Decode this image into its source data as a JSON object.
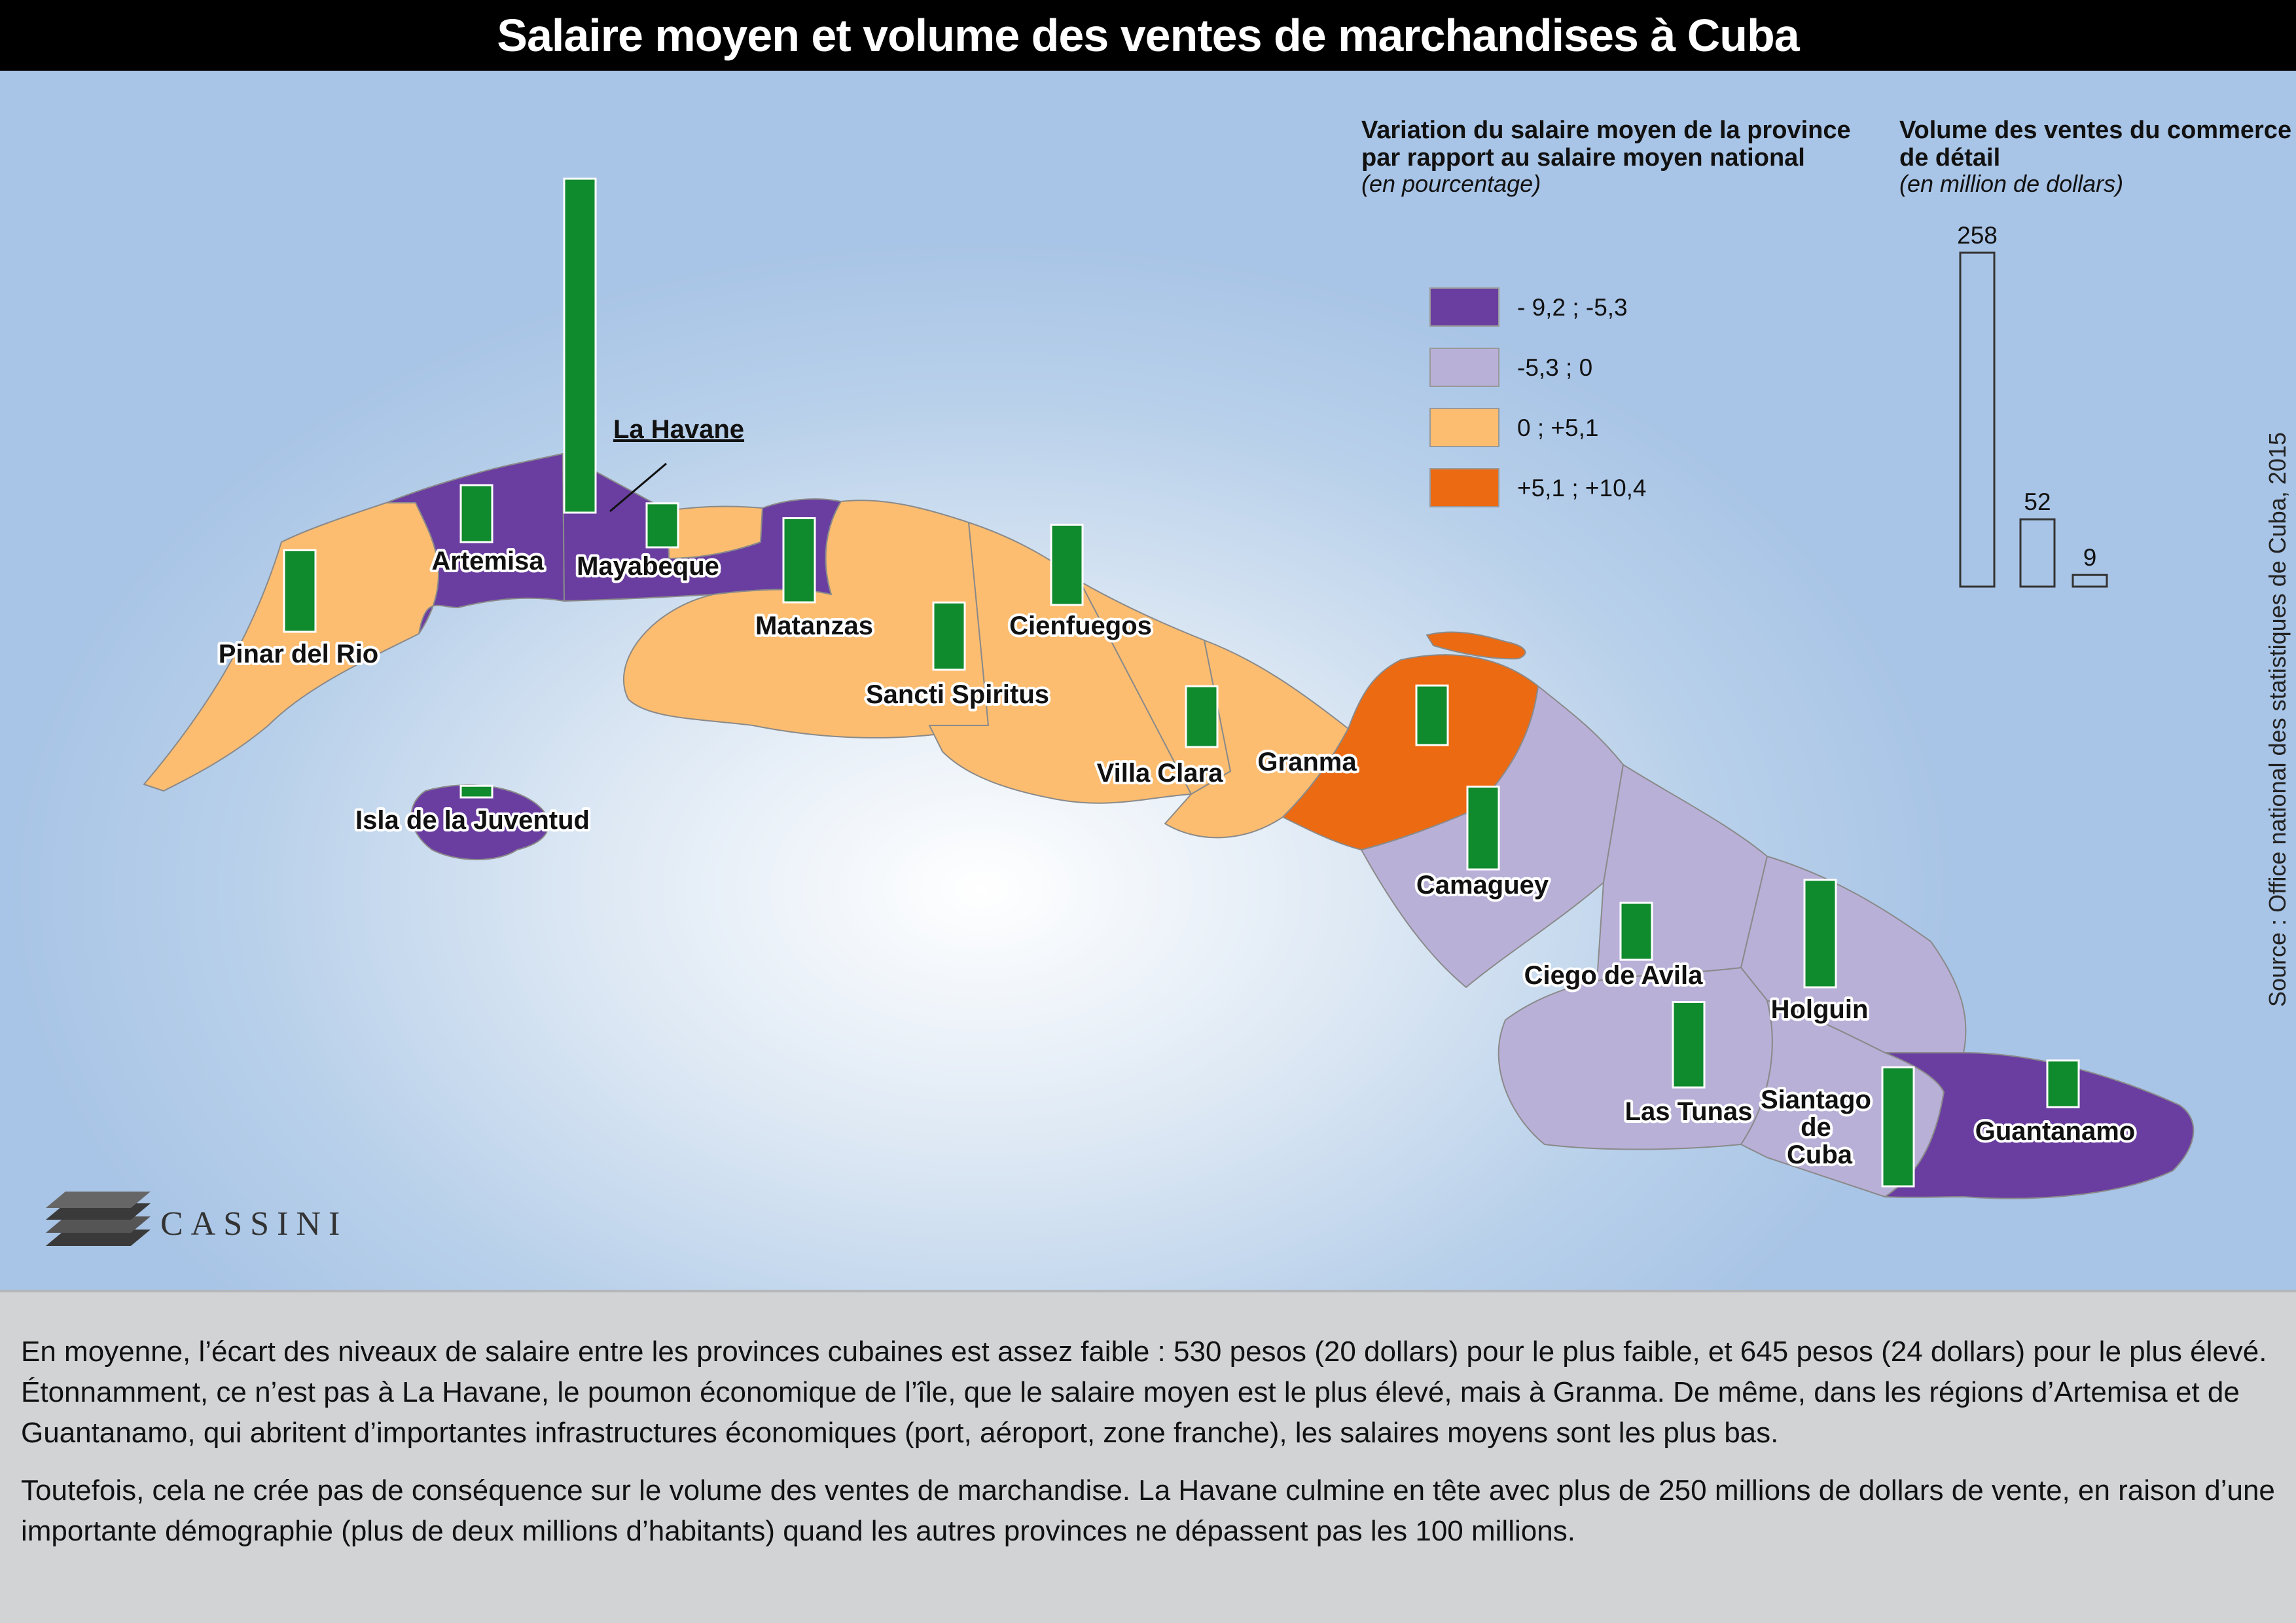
{
  "title": "Salaire moyen et volume des ventes de marchandises à Cuba",
  "legend_wage": {
    "title_lines": [
      "Variation du salaire moyen de la province",
      "par rapport au salaire moyen national"
    ],
    "subtitle": "(en pourcentage)",
    "classes": [
      {
        "label": "- 9,2  ;  -5,3",
        "color": "#6a3ea0"
      },
      {
        "label": "-5,3  ;  0",
        "color": "#b9b0d8"
      },
      {
        "label": "0  ;  +5,1",
        "color": "#fdbd70"
      },
      {
        "label": "+5,1  ;  +10,4",
        "color": "#ec6a12"
      }
    ]
  },
  "legend_sales": {
    "title_lines": [
      "Volume des ventes du commerce",
      "de détail"
    ],
    "subtitle": "(en million de dollars)",
    "scale_values": [
      258,
      52,
      9
    ],
    "scale_labels": [
      "258",
      "52",
      "9"
    ]
  },
  "bar_color": "#0f8a2c",
  "source": "Source : Office national des statistiques de Cuba, 2015",
  "logo": "CASSINI",
  "provinces": [
    {
      "name": "Pinar del Rio",
      "wage_class": 2,
      "sales": 63
    },
    {
      "name": "Artemisa",
      "wage_class": 0,
      "sales": 44
    },
    {
      "name": "La Havane",
      "wage_class": 2,
      "sales": 258
    },
    {
      "name": "Mayabeque",
      "wage_class": 0,
      "sales": 34
    },
    {
      "name": "Matanzas",
      "wage_class": 2,
      "sales": 65
    },
    {
      "name": "Cienfuegos",
      "wage_class": 2,
      "sales": 62
    },
    {
      "name": "Sancti Spiritus",
      "wage_class": 2,
      "sales": 52
    },
    {
      "name": "Villa Clara",
      "wage_class": 2,
      "sales": 47
    },
    {
      "name": "Granma",
      "wage_class": 3,
      "sales": 46
    },
    {
      "name": "Camaguey",
      "wage_class": 1,
      "sales": 64
    },
    {
      "name": "Ciego de Avila",
      "wage_class": 1,
      "sales": 44
    },
    {
      "name": "Holguin",
      "wage_class": 1,
      "sales": 83
    },
    {
      "name": "Las Tunas",
      "wage_class": 1,
      "sales": 66
    },
    {
      "name": "Siantago de Cuba",
      "wage_class": 1,
      "sales": 92
    },
    {
      "name": "Guantanamo",
      "wage_class": 0,
      "sales": 36
    },
    {
      "name": "Isla de la Juventud",
      "wage_class": 0,
      "sales": 9
    }
  ],
  "footer": {
    "paragraphs": [
      "En moyenne, l’écart des niveaux de salaire entre les provinces cubaines est assez faible : 530 pesos (20 dollars) pour le plus faible, et 645 pesos (24 dollars) pour le plus élevé. Étonnamment, ce n’est pas à La Havane, le poumon économique de l’île, que le salaire moyen est le plus élevé, mais à Granma. De même, dans les régions d’Artemisa et de Guantanamo, qui abritent d’importantes infrastructures économiques (port, aéroport, zone franche), les salaires moyens sont les plus bas.",
      "Toutefois,  cela ne crée pas de conséquence sur le volume des ventes de marchandise. La Havane culmine en tête avec plus de 250 millions de dollars de vente, en raison d’une importante démographie (plus de deux millions d’habitants) quand les autres  provinces ne dépassent pas les 100 millions."
    ]
  }
}
